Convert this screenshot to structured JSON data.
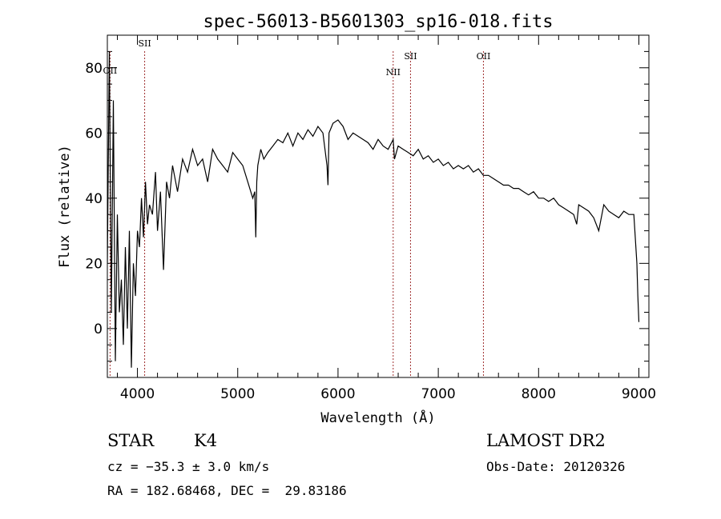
{
  "chart_data": {
    "type": "line",
    "title": "spec-56013-B5601303_sp16-018.fits",
    "xlabel": "Wavelength (Å)",
    "ylabel": "Flux (relative)",
    "xlim": [
      3700,
      9100
    ],
    "ylim": [
      -15,
      90
    ],
    "x_ticks": [
      4000,
      5000,
      6000,
      7000,
      8000,
      9000
    ],
    "y_ticks": [
      0,
      20,
      40,
      60,
      80
    ],
    "grid": false,
    "line_color": "#000000",
    "series": [
      {
        "x": [
          3700,
          3720,
          3740,
          3760,
          3780,
          3800,
          3820,
          3840,
          3860,
          3880,
          3900,
          3920,
          3940,
          3960,
          3980,
          4000,
          4020,
          4040,
          4060,
          4080,
          4100,
          4120,
          4150,
          4180,
          4200,
          4230,
          4260,
          4290,
          4320,
          4350,
          4400,
          4450,
          4500,
          4550,
          4600,
          4650,
          4700,
          4750,
          4800,
          4850,
          4900,
          4950,
          5000,
          5050,
          5100,
          5150,
          5170,
          5180,
          5190,
          5200,
          5230,
          5260,
          5300,
          5350,
          5400,
          5450,
          5500,
          5550,
          5600,
          5650,
          5700,
          5750,
          5800,
          5850,
          5890,
          5900,
          5910,
          5950,
          6000,
          6050,
          6100,
          6150,
          6200,
          6250,
          6300,
          6350,
          6400,
          6450,
          6500,
          6550,
          6563,
          6600,
          6650,
          6700,
          6750,
          6800,
          6850,
          6900,
          6950,
          7000,
          7050,
          7100,
          7150,
          7200,
          7250,
          7300,
          7350,
          7400,
          7450,
          7500,
          7550,
          7600,
          7650,
          7700,
          7750,
          7800,
          7850,
          7900,
          7950,
          8000,
          8050,
          8100,
          8150,
          8200,
          8250,
          8300,
          8350,
          8380,
          8400,
          8450,
          8500,
          8550,
          8600,
          8650,
          8700,
          8750,
          8800,
          8850,
          8900,
          8950,
          8980,
          8990,
          9000
        ],
        "y": [
          20,
          85,
          5,
          70,
          -10,
          35,
          5,
          15,
          -5,
          25,
          0,
          30,
          -12,
          20,
          10,
          30,
          25,
          40,
          28,
          45,
          32,
          38,
          35,
          48,
          30,
          42,
          18,
          45,
          40,
          50,
          42,
          52,
          48,
          55,
          50,
          52,
          45,
          55,
          52,
          50,
          48,
          54,
          52,
          50,
          45,
          40,
          42,
          28,
          45,
          50,
          55,
          52,
          54,
          56,
          58,
          57,
          60,
          56,
          60,
          58,
          61,
          59,
          62,
          60,
          50,
          44,
          60,
          63,
          64,
          62,
          58,
          60,
          59,
          58,
          57,
          55,
          58,
          56,
          55,
          58,
          52,
          56,
          55,
          54,
          53,
          55,
          52,
          53,
          51,
          52,
          50,
          51,
          49,
          50,
          49,
          50,
          48,
          49,
          47,
          47,
          46,
          45,
          44,
          44,
          43,
          43,
          42,
          41,
          42,
          40,
          40,
          39,
          40,
          38,
          37,
          36,
          35,
          32,
          38,
          37,
          36,
          34,
          30,
          38,
          36,
          35,
          34,
          36,
          35,
          35,
          20,
          10,
          2
        ]
      }
    ],
    "annotations": [
      {
        "label": "OII",
        "x": 3727
      },
      {
        "label": "SII",
        "x": 4072
      },
      {
        "label": "NII",
        "x": 6550
      },
      {
        "label": "SII",
        "x": 6723
      },
      {
        "label": "OII",
        "x": 7450
      }
    ]
  },
  "info": {
    "object_class": "STAR",
    "subclass": "K4",
    "survey": "LAMOST DR2",
    "velocity": "cz = −35.3 ± 3.0 km/s",
    "obs_date": "Obs-Date: 20120326",
    "coordinates": "RA = 182.68468, DEC =  29.83186"
  }
}
